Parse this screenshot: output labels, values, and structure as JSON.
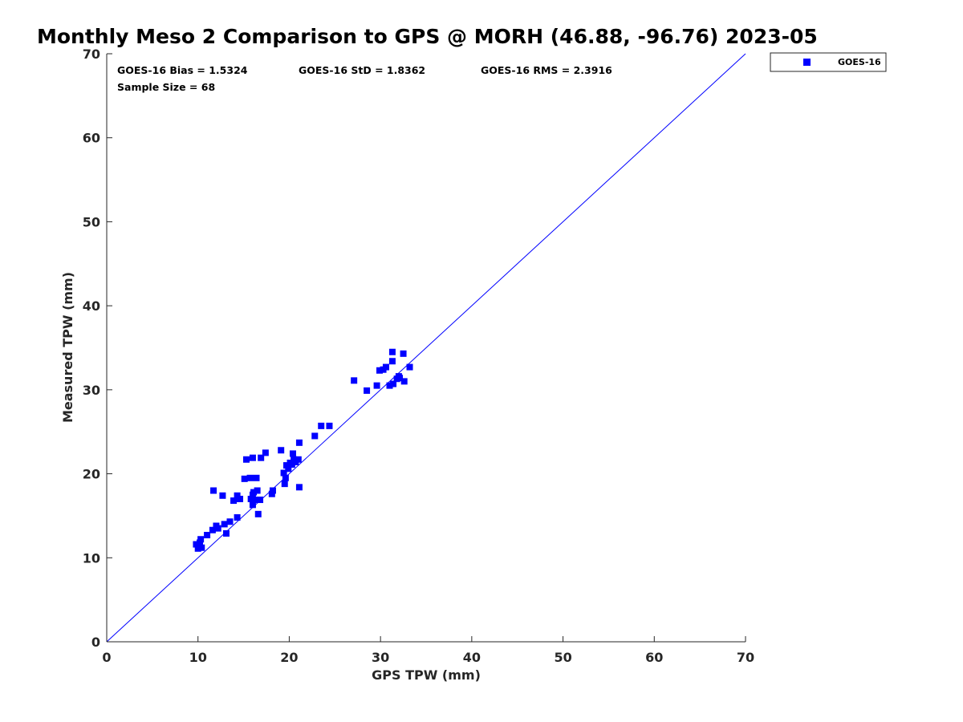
{
  "chart_data": {
    "type": "scatter",
    "title": "Monthly Meso 2 Comparison to GPS @ MORH (46.88, -96.76) 2023-05",
    "xlabel": "GPS TPW (mm)",
    "ylabel": "Measured TPW (mm)",
    "xlim": [
      0,
      70
    ],
    "ylim": [
      0,
      70
    ],
    "xticks": [
      "0",
      "10",
      "20",
      "30",
      "40",
      "50",
      "60",
      "70"
    ],
    "yticks": [
      "0",
      "10",
      "20",
      "30",
      "40",
      "50",
      "60",
      "70"
    ],
    "grid": false,
    "legend_position": "top-right outside",
    "reference_line": {
      "type": "one-to-one",
      "color": "#0000ff"
    },
    "annotations": {
      "bias": "GOES-16 Bias = 1.5324",
      "std": "GOES-16 StD = 1.8362",
      "rms": "GOES-16 RMS = 2.3916",
      "sample_size": "Sample Size = 68"
    },
    "series": [
      {
        "name": "GOES-16",
        "color": "#0000ff",
        "marker": "square",
        "points": [
          [
            9.8,
            11.6
          ],
          [
            10.0,
            11.1
          ],
          [
            10.2,
            11.8
          ],
          [
            10.3,
            12.2
          ],
          [
            10.4,
            11.2
          ],
          [
            11.0,
            12.7
          ],
          [
            11.6,
            13.3
          ],
          [
            11.7,
            18.0
          ],
          [
            12.0,
            13.8
          ],
          [
            12.2,
            13.5
          ],
          [
            12.7,
            17.4
          ],
          [
            12.9,
            14.0
          ],
          [
            13.1,
            12.9
          ],
          [
            13.5,
            14.3
          ],
          [
            13.9,
            16.8
          ],
          [
            14.3,
            14.8
          ],
          [
            14.3,
            17.4
          ],
          [
            14.6,
            17.0
          ],
          [
            15.1,
            19.4
          ],
          [
            15.3,
            21.7
          ],
          [
            15.7,
            19.5
          ],
          [
            15.8,
            17.0
          ],
          [
            16.0,
            21.9
          ],
          [
            16.0,
            17.5
          ],
          [
            16.0,
            16.3
          ],
          [
            16.1,
            17.8
          ],
          [
            16.3,
            16.9
          ],
          [
            16.4,
            19.5
          ],
          [
            16.5,
            18.0
          ],
          [
            16.6,
            15.2
          ],
          [
            16.8,
            16.9
          ],
          [
            16.9,
            21.9
          ],
          [
            17.4,
            22.5
          ],
          [
            18.1,
            17.6
          ],
          [
            18.2,
            18.0
          ],
          [
            19.1,
            22.8
          ],
          [
            19.4,
            20.1
          ],
          [
            19.5,
            18.8
          ],
          [
            19.6,
            19.5
          ],
          [
            19.7,
            21.0
          ],
          [
            19.9,
            20.6
          ],
          [
            20.1,
            21.3
          ],
          [
            20.3,
            21.1
          ],
          [
            20.4,
            22.4
          ],
          [
            20.5,
            21.7
          ],
          [
            20.7,
            21.4
          ],
          [
            21.0,
            21.7
          ],
          [
            21.1,
            23.7
          ],
          [
            21.1,
            18.4
          ],
          [
            22.8,
            24.5
          ],
          [
            23.5,
            25.7
          ],
          [
            24.4,
            25.7
          ],
          [
            27.1,
            31.1
          ],
          [
            28.5,
            29.9
          ],
          [
            29.6,
            30.5
          ],
          [
            29.9,
            32.3
          ],
          [
            30.3,
            32.4
          ],
          [
            30.6,
            32.7
          ],
          [
            31.0,
            30.5
          ],
          [
            31.3,
            34.5
          ],
          [
            31.3,
            33.4
          ],
          [
            31.4,
            30.7
          ],
          [
            31.8,
            31.3
          ],
          [
            32.0,
            31.6
          ],
          [
            32.1,
            31.4
          ],
          [
            32.5,
            34.3
          ],
          [
            32.6,
            31.0
          ],
          [
            33.2,
            32.7
          ]
        ]
      }
    ]
  }
}
